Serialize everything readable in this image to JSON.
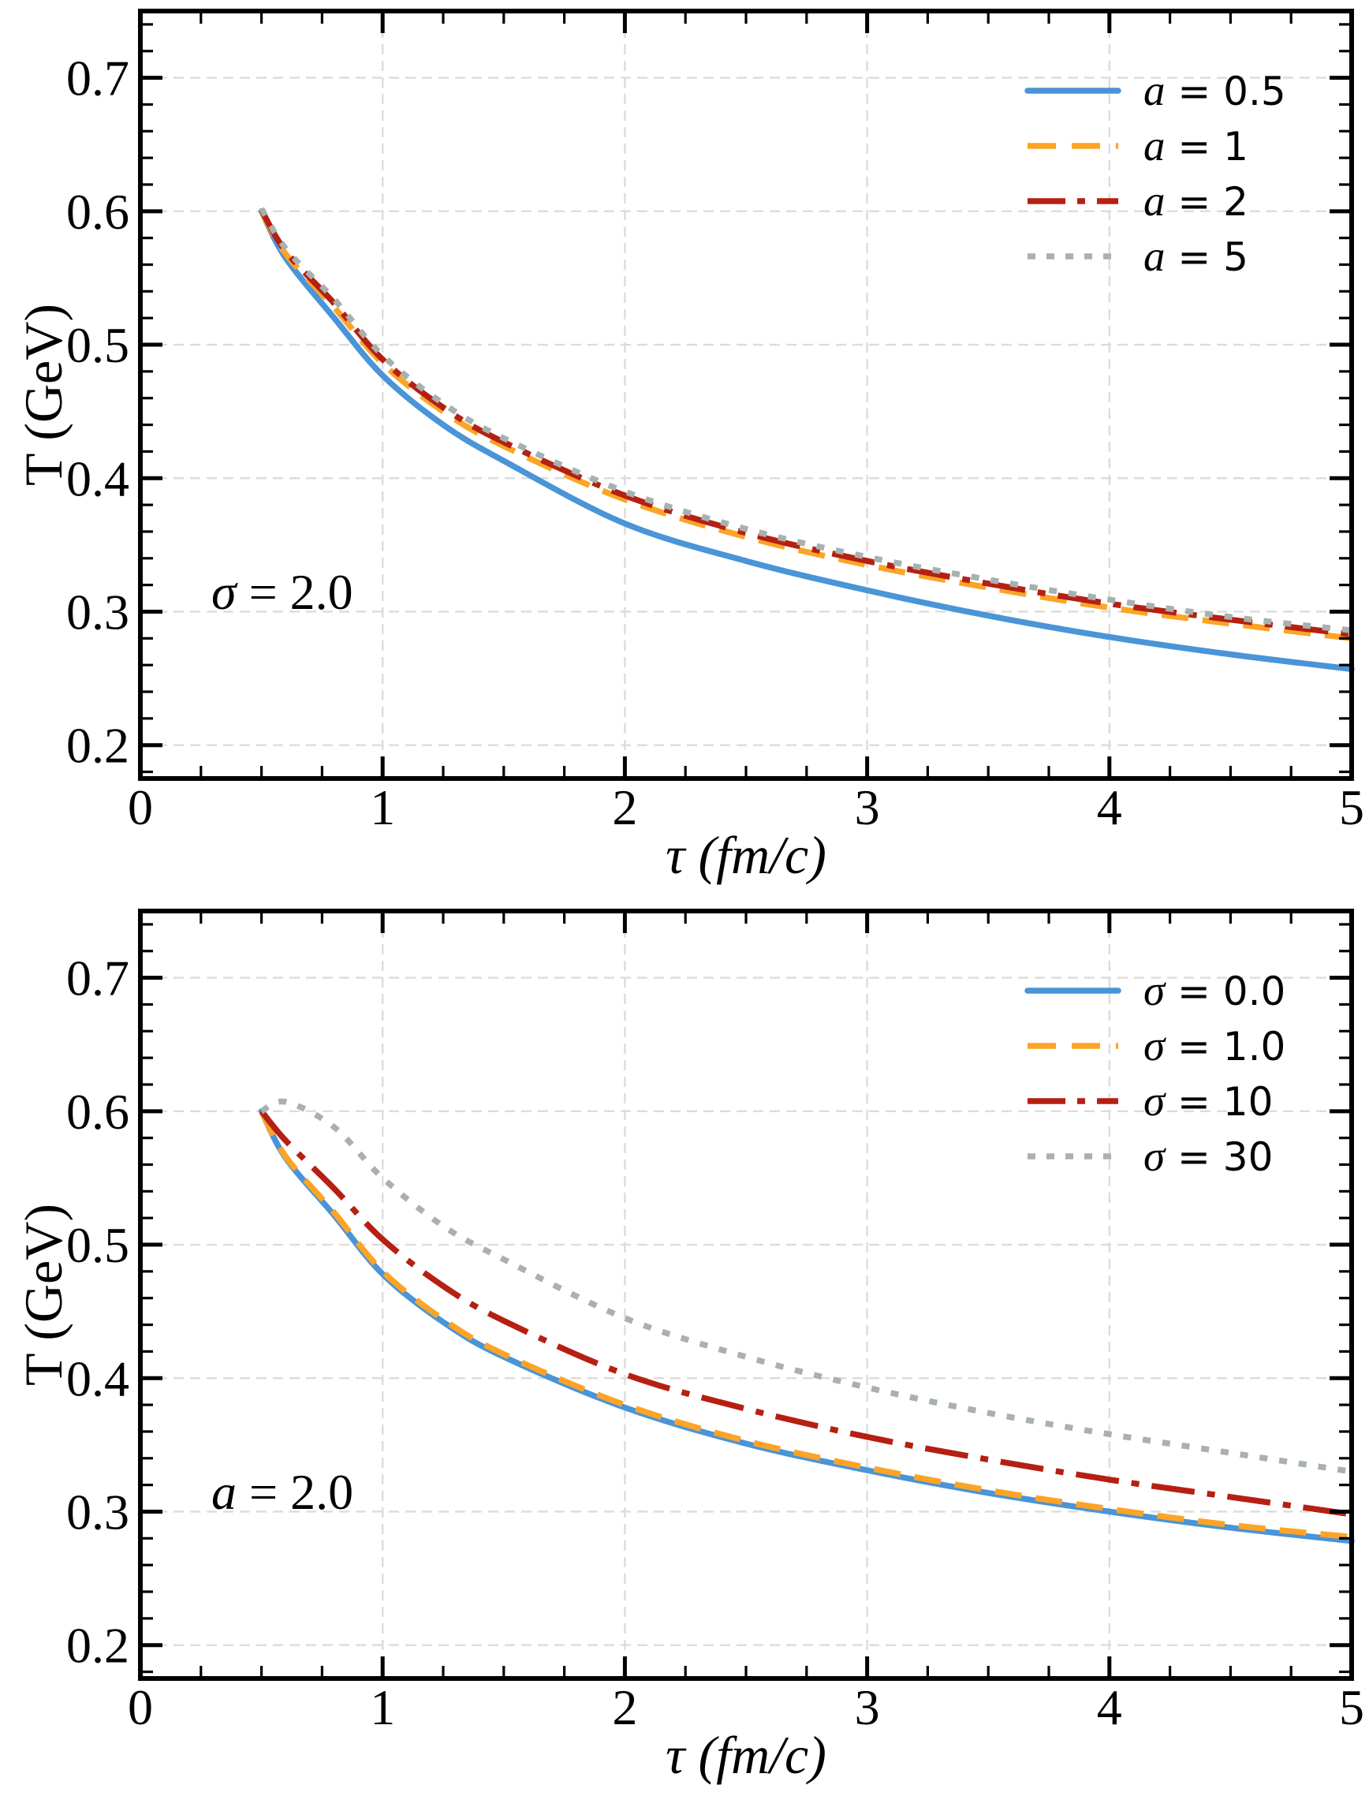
{
  "figure": {
    "background": "#ffffff",
    "axis_color": "#000000",
    "grid_color": "#dcdcdc",
    "text_color": "#000000"
  },
  "chart_data": [
    {
      "type": "line",
      "title": "",
      "xlabel_var": "τ",
      "xlabel_rest": " (fm/c)",
      "ylabel": "T (GeV)",
      "annotation_var": "σ",
      "annotation_rest": " = 2.0",
      "xlim": [
        0,
        5
      ],
      "ylim": [
        0.175,
        0.75
      ],
      "xticks": [
        "0",
        "1",
        "2",
        "3",
        "4",
        "5"
      ],
      "yticks": [
        "0.2",
        "0.3",
        "0.4",
        "0.5",
        "0.6",
        "0.7"
      ],
      "x_minor_step": 0.25,
      "y_minor_step": 0.02,
      "grid": true,
      "legend_position": "upper right",
      "x": [
        0.5,
        0.6,
        0.8,
        1.0,
        1.25,
        1.5,
        2.0,
        2.5,
        3.0,
        3.5,
        4.0,
        4.5,
        5.0
      ],
      "series": [
        {
          "var": "a",
          "value": "0.5",
          "label": "a = 0.5",
          "color": "#4a94d8",
          "linestyle": "solid",
          "values": [
            0.6,
            0.565,
            0.52,
            0.477,
            0.44,
            0.413,
            0.366,
            0.338,
            0.316,
            0.297,
            0.281,
            0.268,
            0.257
          ]
        },
        {
          "var": "a",
          "value": "1",
          "label": "a = 1",
          "color": "#fca426",
          "linestyle": "dashed",
          "values": [
            0.6,
            0.568,
            0.528,
            0.486,
            0.45,
            0.424,
            0.384,
            0.356,
            0.335,
            0.318,
            0.303,
            0.291,
            0.28
          ]
        },
        {
          "var": "a",
          "value": "2",
          "label": "a = 2",
          "color": "#b52012",
          "linestyle": "dashdot",
          "values": [
            0.601,
            0.57,
            0.531,
            0.489,
            0.453,
            0.427,
            0.387,
            0.359,
            0.338,
            0.321,
            0.306,
            0.294,
            0.283
          ]
        },
        {
          "var": "a",
          "value": "5",
          "label": "a = 5",
          "color": "#a7b1af",
          "linestyle": "dotted",
          "values": [
            0.602,
            0.572,
            0.534,
            0.492,
            0.456,
            0.43,
            0.39,
            0.362,
            0.341,
            0.324,
            0.309,
            0.296,
            0.286
          ]
        }
      ]
    },
    {
      "type": "line",
      "title": "",
      "xlabel_var": "τ",
      "xlabel_rest": " (fm/c)",
      "ylabel": "T (GeV)",
      "annotation_var": "a",
      "annotation_rest": " = 2.0",
      "xlim": [
        0,
        5
      ],
      "ylim": [
        0.175,
        0.75
      ],
      "xticks": [
        "0",
        "1",
        "2",
        "3",
        "4",
        "5"
      ],
      "yticks": [
        "0.2",
        "0.3",
        "0.4",
        "0.5",
        "0.6",
        "0.7"
      ],
      "x_minor_step": 0.25,
      "y_minor_step": 0.02,
      "grid": true,
      "legend_position": "upper right",
      "x": [
        0.5,
        0.6,
        0.8,
        1.0,
        1.25,
        1.5,
        2.0,
        2.5,
        3.0,
        3.5,
        4.0,
        4.5,
        5.0
      ],
      "series": [
        {
          "var": "σ",
          "value": "0.0",
          "label": "σ = 0.0",
          "color": "#4a94d8",
          "linestyle": "solid",
          "values": [
            0.6,
            0.565,
            0.522,
            0.478,
            0.442,
            0.416,
            0.378,
            0.351,
            0.331,
            0.314,
            0.3,
            0.288,
            0.278
          ]
        },
        {
          "var": "σ",
          "value": "1.0",
          "label": "σ = 1.0",
          "color": "#fca426",
          "linestyle": "dashed",
          "values": [
            0.6,
            0.566,
            0.524,
            0.48,
            0.444,
            0.418,
            0.38,
            0.353,
            0.333,
            0.316,
            0.302,
            0.29,
            0.281
          ]
        },
        {
          "var": "σ",
          "value": "10",
          "label": "σ = 10",
          "color": "#b52012",
          "linestyle": "dashdot",
          "values": [
            0.6,
            0.578,
            0.542,
            0.504,
            0.469,
            0.443,
            0.403,
            0.377,
            0.356,
            0.339,
            0.324,
            0.311,
            0.298
          ]
        },
        {
          "var": "σ",
          "value": "30",
          "label": "σ = 30",
          "color": "#a7b1af",
          "linestyle": "dotted",
          "values": [
            0.6,
            0.607,
            0.588,
            0.55,
            0.514,
            0.489,
            0.445,
            0.416,
            0.393,
            0.374,
            0.358,
            0.344,
            0.33
          ]
        }
      ]
    }
  ]
}
